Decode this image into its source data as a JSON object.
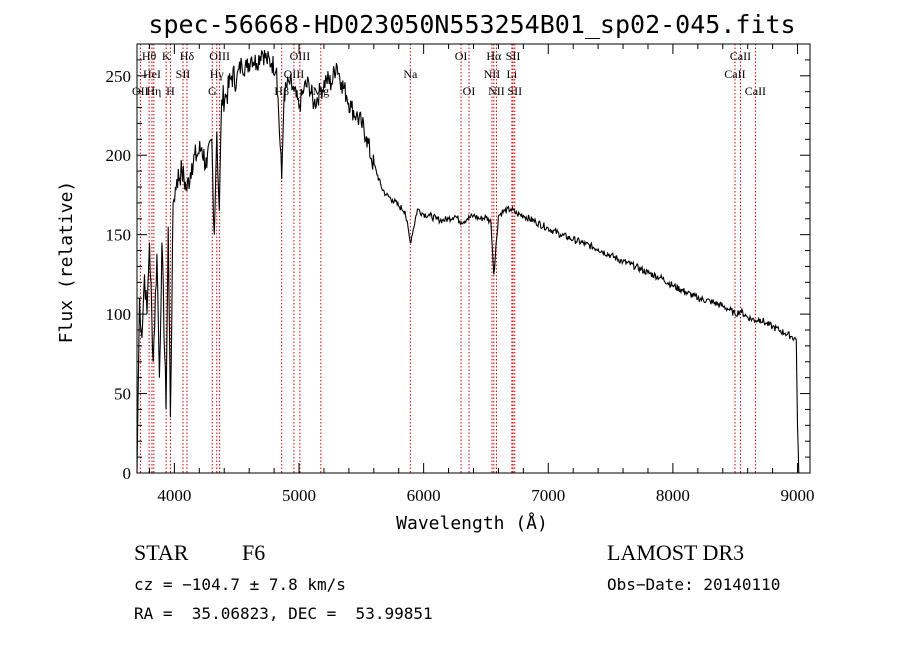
{
  "chart_data": {
    "type": "line",
    "title": "spec-56668-HD023050N553254B01_sp02-045.fits",
    "xlabel": "Wavelength (Å)",
    "ylabel": "Flux (relative)",
    "xlim": [
      3700,
      9100
    ],
    "ylim": [
      0,
      270
    ],
    "x_ticks": [
      4000,
      5000,
      6000,
      7000,
      8000,
      9000
    ],
    "y_ticks": [
      0,
      50,
      100,
      150,
      200,
      250
    ],
    "series": [
      {
        "name": "spectrum",
        "x": [
          3700,
          3720,
          3740,
          3760,
          3780,
          3800,
          3830,
          3860,
          3880,
          3900,
          3933,
          3950,
          3968,
          3990,
          4020,
          4060,
          4101,
          4140,
          4180,
          4220,
          4260,
          4300,
          4320,
          4340,
          4360,
          4380,
          4420,
          4460,
          4500,
          4540,
          4580,
          4620,
          4660,
          4700,
          4740,
          4780,
          4820,
          4861,
          4880,
          4920,
          4960,
          5000,
          5040,
          5080,
          5120,
          5170,
          5220,
          5260,
          5300,
          5340,
          5380,
          5420,
          5460,
          5500,
          5540,
          5580,
          5620,
          5660,
          5700,
          5750,
          5800,
          5850,
          5893,
          5950,
          6000,
          6050,
          6100,
          6150,
          6200,
          6250,
          6300,
          6350,
          6400,
          6450,
          6500,
          6540,
          6563,
          6600,
          6650,
          6700,
          6750,
          6800,
          6900,
          7000,
          7100,
          7200,
          7300,
          7400,
          7500,
          7600,
          7700,
          7800,
          7900,
          8000,
          8100,
          8200,
          8300,
          8400,
          8450,
          8498,
          8542,
          8600,
          8662,
          8700,
          8750,
          8800,
          8850,
          8900,
          8950,
          8990,
          9000,
          9010
        ],
        "values": [
          0,
          110,
          85,
          125,
          100,
          145,
          70,
          138,
          60,
          145,
          40,
          155,
          35,
          170,
          185,
          190,
          178,
          195,
          200,
          205,
          192,
          210,
          150,
          215,
          165,
          235,
          238,
          250,
          248,
          258,
          255,
          262,
          258,
          266,
          260,
          258,
          255,
          185,
          238,
          246,
          240,
          230,
          242,
          245,
          232,
          240,
          248,
          245,
          258,
          246,
          238,
          230,
          225,
          220,
          212,
          198,
          190,
          180,
          175,
          172,
          168,
          165,
          145,
          166,
          163,
          162,
          160,
          159,
          160,
          162,
          158,
          160,
          162,
          160,
          161,
          158,
          125,
          162,
          165,
          166,
          163,
          162,
          158,
          154,
          150,
          147,
          144,
          141,
          137,
          133,
          130,
          126,
          123,
          118,
          114,
          110,
          108,
          105,
          103,
          100,
          102,
          98,
          96,
          97,
          94,
          92,
          90,
          88,
          86,
          84,
          30,
          0
        ]
      }
    ],
    "spectral_lines": [
      {
        "label": "OII",
        "wavelength": 3727,
        "row": 2
      },
      {
        "label": "Hθ",
        "wavelength": 3797,
        "row": 0
      },
      {
        "label": "HeI",
        "wavelength": 3820,
        "row": 1
      },
      {
        "label": "Hη",
        "wavelength": 3835,
        "row": 2
      },
      {
        "label": "K",
        "wavelength": 3934,
        "row": 0
      },
      {
        "label": "H",
        "wavelength": 3968,
        "row": 2
      },
      {
        "label": "SII",
        "wavelength": 4069,
        "row": 1
      },
      {
        "label": "Hδ",
        "wavelength": 4101,
        "row": 0
      },
      {
        "label": "OIII",
        "wavelength": 4363,
        "row": 0
      },
      {
        "label": "Hγ",
        "wavelength": 4340,
        "row": 1
      },
      {
        "label": "G",
        "wavelength": 4304,
        "row": 2
      },
      {
        "label": "Hβ",
        "wavelength": 4861,
        "row": 2
      },
      {
        "label": "OIII",
        "wavelength": 4959,
        "row": 1
      },
      {
        "label": "OIII",
        "wavelength": 5007,
        "row": 0
      },
      {
        "label": "Mg",
        "wavelength": 5175,
        "row": 2
      },
      {
        "label": "Na",
        "wavelength": 5893,
        "row": 1
      },
      {
        "label": "OI",
        "wavelength": 6300,
        "row": 0
      },
      {
        "label": "OI",
        "wavelength": 6364,
        "row": 2
      },
      {
        "label": "Hα",
        "wavelength": 6563,
        "row": 0
      },
      {
        "label": "NII",
        "wavelength": 6548,
        "row": 1
      },
      {
        "label": "NII",
        "wavelength": 6584,
        "row": 2
      },
      {
        "label": "SII",
        "wavelength": 6717,
        "row": 0
      },
      {
        "label": "SII",
        "wavelength": 6731,
        "row": 2
      },
      {
        "label": "Li",
        "wavelength": 6708,
        "row": 1
      },
      {
        "label": "CaII",
        "wavelength": 8542,
        "row": 0
      },
      {
        "label": "CaII",
        "wavelength": 8498,
        "row": 1
      },
      {
        "label": "CaII",
        "wavelength": 8662,
        "row": 2
      }
    ]
  },
  "info": {
    "object_class": "STAR",
    "subclass": "F6",
    "survey": "LAMOST DR3",
    "cz": "cz = −104.7 ± 7.8 km/s",
    "obs_date": "Obs−Date: 20140110",
    "coords": "RA =  35.06823, DEC =  53.99851"
  },
  "colors": {
    "spectrum": "#000000",
    "line_markers": "#cc0000",
    "axes": "#000000"
  }
}
